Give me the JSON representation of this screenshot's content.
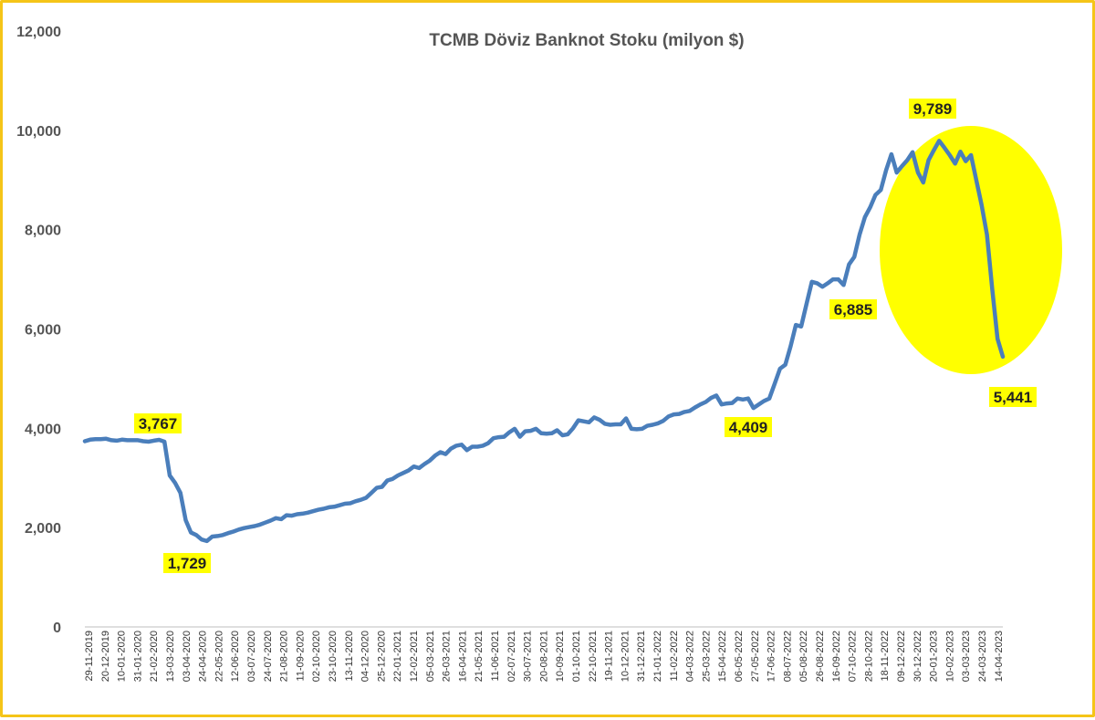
{
  "chart_data": {
    "type": "line",
    "title": "TCMB Döviz Banknot Stoku (milyon $)",
    "xlabel": "",
    "ylabel": "",
    "ylim": [
      0,
      12000
    ],
    "yticks": [
      "0",
      "2,000",
      "4,000",
      "6,000",
      "8,000",
      "10,000",
      "12,000"
    ],
    "grid": false,
    "legend": "none",
    "series_color": "#4a7ebb",
    "highlight_color": "#ffff00",
    "frame_color": "#f5c518",
    "x_tick_labels": [
      "29-11-2019",
      "20-12-2019",
      "10-01-2020",
      "31-01-2020",
      "21-02-2020",
      "13-03-2020",
      "03-04-2020",
      "24-04-2020",
      "22-05-2020",
      "12-06-2020",
      "03-07-2020",
      "24-07-2020",
      "21-08-2020",
      "11-09-2020",
      "02-10-2020",
      "23-10-2020",
      "13-11-2020",
      "04-12-2020",
      "25-12-2020",
      "22-01-2021",
      "12-02-2021",
      "05-03-2021",
      "26-03-2021",
      "16-04-2021",
      "21-05-2021",
      "11-06-2021",
      "02-07-2021",
      "30-07-2021",
      "20-08-2021",
      "10-09-2021",
      "01-10-2021",
      "22-10-2021",
      "19-11-2021",
      "10-12-2021",
      "31-12-2021",
      "21-01-2022",
      "11-02-2022",
      "04-03-2022",
      "25-03-2022",
      "15-04-2022",
      "06-05-2022",
      "27-05-2022",
      "17-06-2022",
      "08-07-2022",
      "05-08-2022",
      "26-08-2022",
      "16-09-2022",
      "07-10-2022",
      "28-10-2022",
      "18-11-2022",
      "09-12-2022",
      "30-12-2022",
      "20-01-2023",
      "10-02-2023",
      "03-03-2023",
      "24-03-2023",
      "14-04-2023"
    ],
    "series": [
      {
        "values": [
          3740,
          3770,
          3780,
          3780,
          3790,
          3760,
          3750,
          3770,
          3760,
          3760,
          3760,
          3740,
          3730,
          3750,
          3767,
          3730,
          3050,
          2900,
          2700,
          2150,
          1900,
          1850,
          1760,
          1729,
          1820,
          1830,
          1850,
          1890,
          1920,
          1960,
          1990,
          2010,
          2030,
          2060,
          2100,
          2140,
          2190,
          2170,
          2250,
          2240,
          2270,
          2280,
          2300,
          2330,
          2360,
          2380,
          2410,
          2420,
          2450,
          2480,
          2490,
          2530,
          2560,
          2600,
          2700,
          2800,
          2820,
          2950,
          2980,
          3050,
          3100,
          3150,
          3230,
          3200,
          3280,
          3350,
          3450,
          3520,
          3480,
          3590,
          3650,
          3670,
          3560,
          3630,
          3630,
          3650,
          3700,
          3800,
          3820,
          3830,
          3920,
          3990,
          3830,
          3940,
          3950,
          3990,
          3900,
          3890,
          3900,
          3960,
          3860,
          3880,
          4000,
          4160,
          4140,
          4120,
          4220,
          4170,
          4090,
          4070,
          4080,
          4080,
          4200,
          3990,
          3980,
          3990,
          4050,
          4070,
          4100,
          4150,
          4240,
          4280,
          4290,
          4330,
          4350,
          4420,
          4480,
          4530,
          4610,
          4660,
          4480,
          4500,
          4510,
          4600,
          4580,
          4600,
          4409,
          4480,
          4550,
          4600,
          4900,
          5200,
          5280,
          5650,
          6080,
          6050,
          6500,
          6950,
          6920,
          6850,
          6920,
          7000,
          7000,
          6885,
          7300,
          7450,
          7900,
          8250,
          8450,
          8700,
          8800,
          9200,
          9520,
          9150,
          9280,
          9400,
          9560,
          9150,
          8950,
          9400,
          9600,
          9789,
          9650,
          9500,
          9330,
          9570,
          9380,
          9500,
          9000,
          8500,
          7900,
          6800,
          5800,
          5441
        ]
      }
    ],
    "annotations": [
      {
        "label": "3,767",
        "value": 3767
      },
      {
        "label": "1,729",
        "value": 1729
      },
      {
        "label": "4,409",
        "value": 4409
      },
      {
        "label": "6,885",
        "value": 6885
      },
      {
        "label": "9,789",
        "value": 9789
      },
      {
        "label": "5,441",
        "value": 5441
      }
    ]
  }
}
